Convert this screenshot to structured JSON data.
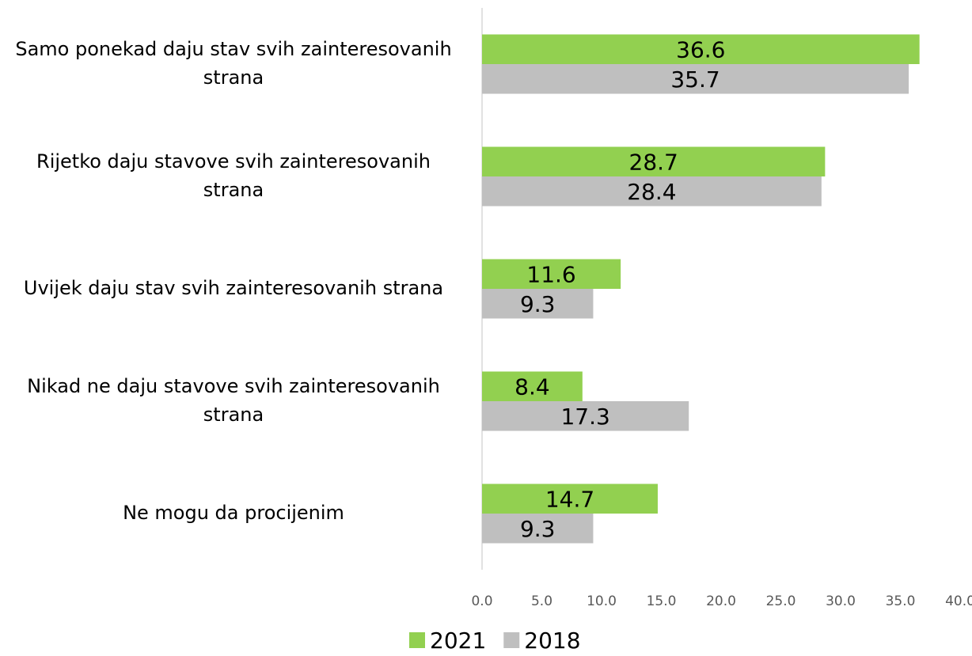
{
  "chart_data": {
    "type": "hbar",
    "categories": [
      "Samo ponekad daju stav svih zainteresovanih strana",
      "Rijetko daju stavove svih zainteresovanih strana",
      "Uvijek daju stav svih zainteresovanih strana",
      "Nikad ne daju stavove svih zainteresovanih strana",
      "Ne mogu da procijenim"
    ],
    "series": [
      {
        "name": "2021",
        "color": "#92d050",
        "values": [
          36.6,
          28.7,
          11.6,
          8.4,
          14.7
        ]
      },
      {
        "name": "2018",
        "color": "#bfbfbf",
        "values": [
          35.7,
          28.4,
          9.3,
          17.3,
          9.3
        ]
      }
    ],
    "xlim": [
      0,
      40
    ],
    "xticks": [
      {
        "value": 0,
        "label": "0.0"
      },
      {
        "value": 5,
        "label": "5.0"
      },
      {
        "value": 10,
        "label": "10.0"
      },
      {
        "value": 15,
        "label": "15.0"
      },
      {
        "value": 20,
        "label": "20.0"
      },
      {
        "value": 25,
        "label": "25.0"
      },
      {
        "value": 30,
        "label": "30.0"
      },
      {
        "value": 35,
        "label": "35.0"
      },
      {
        "value": 40,
        "label": "40.0"
      }
    ],
    "grid": false,
    "legend": "bottom"
  }
}
